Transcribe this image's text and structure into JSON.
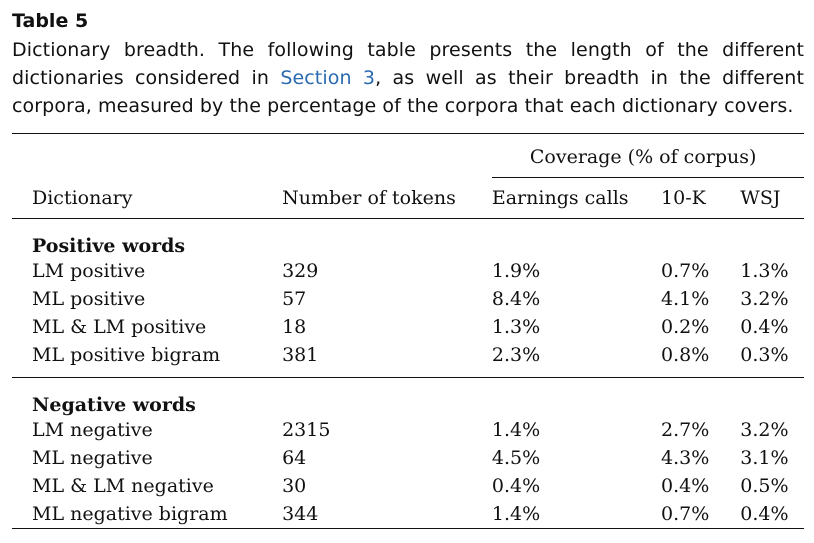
{
  "table_label": "Table 5",
  "caption": {
    "before": "Dictionary breadth. The following table presents the length of the different dictionaries considered in ",
    "ref": "Section 3",
    "after": ", as well as their breadth in the different corpora, measured by the percentage of the corpora that each dictionary covers."
  },
  "header": {
    "group_label": "Coverage (% of corpus)",
    "columns": [
      "Dictionary",
      "Number of tokens",
      "Earnings calls",
      "10-K",
      "WSJ"
    ]
  },
  "sections": [
    {
      "title": "Positive words",
      "rows": [
        {
          "name": "LM positive",
          "tokens": "329",
          "earnings": "1.9%",
          "tenk": "0.7%",
          "wsj": "1.3%"
        },
        {
          "name": "ML positive",
          "tokens": "57",
          "earnings": "8.4%",
          "tenk": "4.1%",
          "wsj": "3.2%"
        },
        {
          "name": "ML & LM positive",
          "tokens": "18",
          "earnings": "1.3%",
          "tenk": "0.2%",
          "wsj": "0.4%"
        },
        {
          "name": "ML positive bigram",
          "tokens": "381",
          "earnings": "2.3%",
          "tenk": "0.8%",
          "wsj": "0.3%"
        }
      ]
    },
    {
      "title": "Negative words",
      "rows": [
        {
          "name": "LM negative",
          "tokens": "2315",
          "earnings": "1.4%",
          "tenk": "2.7%",
          "wsj": "3.2%"
        },
        {
          "name": "ML negative",
          "tokens": "64",
          "earnings": "4.5%",
          "tenk": "4.3%",
          "wsj": "3.1%"
        },
        {
          "name": "ML & LM negative",
          "tokens": "30",
          "earnings": "0.4%",
          "tenk": "0.4%",
          "wsj": "0.5%"
        },
        {
          "name": "ML negative bigram",
          "tokens": "344",
          "earnings": "1.4%",
          "tenk": "0.7%",
          "wsj": "0.4%"
        }
      ]
    }
  ]
}
